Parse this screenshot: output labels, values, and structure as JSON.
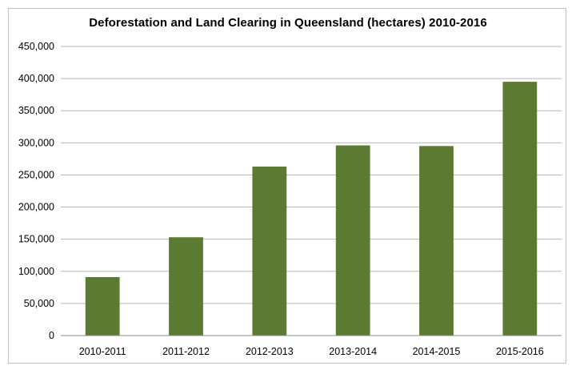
{
  "chart_data": {
    "type": "bar",
    "title": "Deforestation and Land Clearing in Queensland (hectares) 2010-2016",
    "xlabel": "",
    "ylabel": "",
    "categories": [
      "2010-2011",
      "2011-2012",
      "2012-2013",
      "2013-2014",
      "2014-2015",
      "2015-2016"
    ],
    "values": [
      91000,
      153000,
      263000,
      296000,
      295000,
      395000
    ],
    "ylim": [
      0,
      450000
    ],
    "yticks": [
      0,
      50000,
      100000,
      150000,
      200000,
      250000,
      300000,
      350000,
      400000,
      450000
    ],
    "ytick_labels": [
      "0",
      "50,000",
      "100,000",
      "150,000",
      "200,000",
      "250,000",
      "300,000",
      "350,000",
      "400,000",
      "450,000"
    ],
    "grid": true,
    "legend": "none",
    "colors": {
      "bar": "#5b7a32",
      "grid": "#b7b7b7",
      "axis": "#8c8c8c"
    }
  }
}
